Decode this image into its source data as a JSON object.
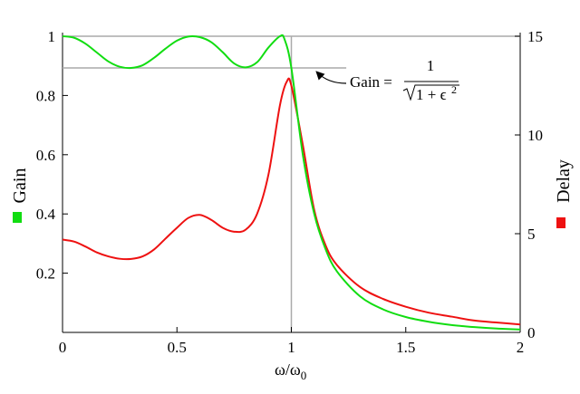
{
  "chart_data": {
    "type": "line",
    "xlabel": "ω/ω",
    "xlabel_sub": "0",
    "xlim": [
      0,
      2
    ],
    "x_ticks": [
      0,
      0.5,
      1,
      1.5,
      2
    ],
    "x_tick_labels": [
      "0",
      "0.5",
      "1",
      "1.5",
      "2"
    ],
    "left_axis": {
      "label": "Gain",
      "color": "#11dd11",
      "ylim": [
        0,
        1
      ],
      "ticks": [
        0.2,
        0.4,
        0.6,
        0.8,
        1
      ],
      "tick_labels": [
        "0.2",
        "0.4",
        "0.6",
        "0.8",
        "1"
      ]
    },
    "right_axis": {
      "label": "Delay",
      "color": "#ee1111",
      "ylim": [
        0,
        15
      ],
      "ticks": [
        0,
        5,
        10,
        15
      ],
      "tick_labels": [
        "0",
        "5",
        "10",
        "15"
      ]
    },
    "series": [
      {
        "name": "Gain",
        "axis": "left",
        "color": "#11dd11",
        "x": [
          0,
          0.05,
          0.1,
          0.15,
          0.2,
          0.25,
          0.3,
          0.35,
          0.4,
          0.45,
          0.5,
          0.55,
          0.6,
          0.65,
          0.7,
          0.75,
          0.8,
          0.85,
          0.9,
          0.95,
          0.97,
          1.0,
          1.05,
          1.1,
          1.15,
          1.2,
          1.3,
          1.4,
          1.5,
          1.6,
          1.7,
          1.8,
          1.9,
          2.0
        ],
        "values": [
          1,
          0.995,
          0.975,
          0.945,
          0.915,
          0.897,
          0.893,
          0.902,
          0.927,
          0.958,
          0.985,
          0.999,
          0.997,
          0.98,
          0.946,
          0.908,
          0.895,
          0.912,
          0.962,
          1.0,
          0.99,
          0.893,
          0.6,
          0.4,
          0.28,
          0.205,
          0.122,
          0.078,
          0.052,
          0.036,
          0.025,
          0.018,
          0.013,
          0.01
        ]
      },
      {
        "name": "Delay",
        "axis": "right",
        "color": "#ee1111",
        "x": [
          0,
          0.05,
          0.1,
          0.15,
          0.2,
          0.25,
          0.3,
          0.35,
          0.4,
          0.45,
          0.5,
          0.55,
          0.6,
          0.65,
          0.7,
          0.75,
          0.8,
          0.85,
          0.9,
          0.95,
          0.98,
          1.0,
          1.05,
          1.1,
          1.15,
          1.2,
          1.3,
          1.4,
          1.5,
          1.6,
          1.7,
          1.8,
          1.9,
          2.0
        ],
        "values": [
          4.7,
          4.6,
          4.35,
          4.05,
          3.85,
          3.73,
          3.72,
          3.85,
          4.2,
          4.75,
          5.3,
          5.8,
          5.95,
          5.7,
          5.3,
          5.1,
          5.2,
          6.0,
          8.0,
          11.5,
          12.7,
          12.5,
          9.5,
          6.2,
          4.4,
          3.4,
          2.3,
          1.7,
          1.3,
          1.0,
          0.8,
          0.6,
          0.5,
          0.4
        ]
      }
    ],
    "reference_lines": [
      {
        "orientation": "horizontal",
        "axis": "left",
        "value": 1,
        "color": "#aaaaaa"
      },
      {
        "orientation": "horizontal",
        "axis": "left",
        "value": 0.893,
        "x_end": 1.24,
        "color": "#aaaaaa"
      },
      {
        "orientation": "vertical",
        "value": 1,
        "color": "#aaaaaa"
      }
    ],
    "annotation": {
      "prefix": "Gain =",
      "numerator": "1",
      "denominator": "1 + ϵ",
      "exponent": "2"
    },
    "grid": false,
    "legend": "axis-side swatches"
  }
}
